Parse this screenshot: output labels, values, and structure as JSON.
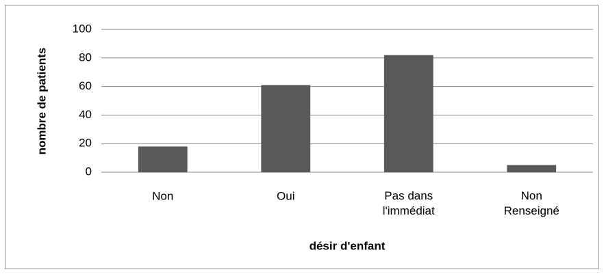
{
  "chart_data": {
    "type": "bar",
    "categories": [
      "Non",
      "Oui",
      "Pas dans l'immédiat",
      "Non Renseigné"
    ],
    "values": [
      18,
      61,
      82,
      5
    ],
    "color": "#595959",
    "ylim": [
      0,
      100
    ],
    "yticks": [
      0,
      20,
      40,
      60,
      80,
      100
    ],
    "grid": true,
    "xlabel": "désir d'enfant",
    "ylabel": "nombre de patients"
  }
}
